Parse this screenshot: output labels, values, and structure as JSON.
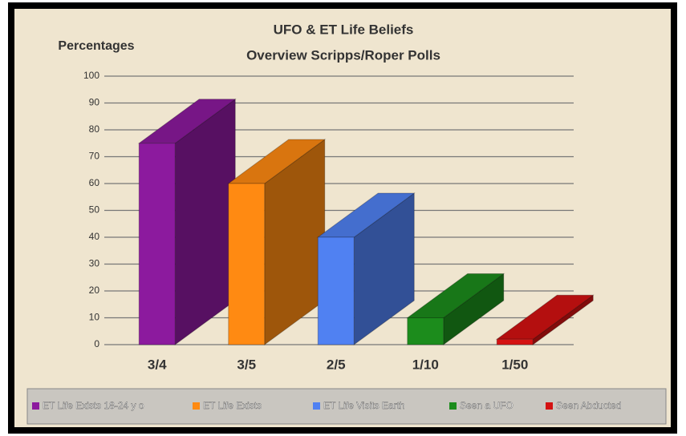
{
  "chart_data": {
    "type": "bar3d",
    "title": [
      "UFO & ET Life Beliefs",
      "Overview Scripps/Roper Polls"
    ],
    "ylabel": "Percentages",
    "categories": [
      "3/4",
      "3/5",
      "2/5",
      "1/10",
      "1/50"
    ],
    "values": [
      75,
      60,
      40,
      10,
      2
    ],
    "colors": [
      "#8c1a9e",
      "#ff8a12",
      "#5081f2",
      "#1c8c1c",
      "#d41212"
    ],
    "legend": [
      "ET Life Exists 18-24 y o",
      "ET Life Exists",
      "ET Life Visits Earth",
      "Seen a UFO",
      "Seen Abducted"
    ],
    "ylim": [
      0,
      100
    ],
    "yticks": [
      0,
      10,
      20,
      30,
      40,
      50,
      60,
      70,
      80,
      90,
      100
    ],
    "grid": true
  }
}
